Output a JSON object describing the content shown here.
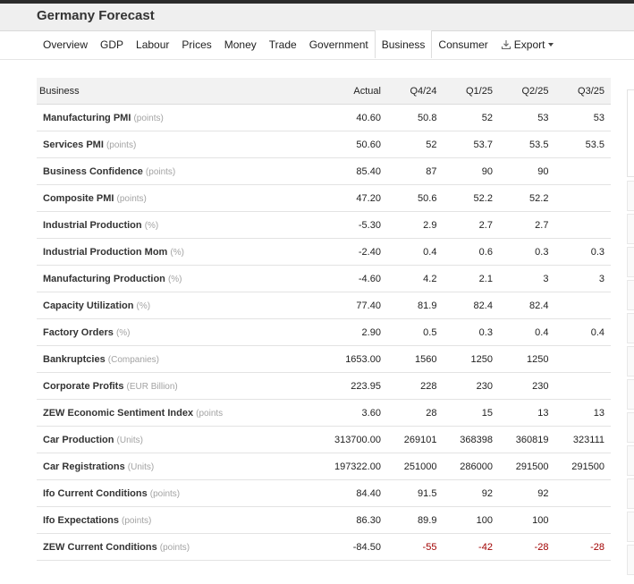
{
  "page_title": "Germany Forecast",
  "nav": [
    {
      "label": "Overview"
    },
    {
      "label": "GDP"
    },
    {
      "label": "Labour"
    },
    {
      "label": "Prices"
    },
    {
      "label": "Money"
    },
    {
      "label": "Trade"
    },
    {
      "label": "Government"
    },
    {
      "label": "Business",
      "active": true
    },
    {
      "label": "Consumer"
    },
    {
      "label": "Export",
      "icon": "download-icon",
      "dropdown": true
    }
  ],
  "table": {
    "columns": [
      "Business",
      "Actual",
      "Q4/24",
      "Q1/25",
      "Q2/25",
      "Q3/25"
    ],
    "rows": [
      {
        "name": "Manufacturing PMI",
        "unit": "(points)",
        "actual": "40.60",
        "q4_24": "50.8",
        "q1_25": "52",
        "q2_25": "53",
        "q3_25": "53"
      },
      {
        "name": "Services PMI",
        "unit": "(points)",
        "actual": "50.60",
        "q4_24": "52",
        "q1_25": "53.7",
        "q2_25": "53.5",
        "q3_25": "53.5"
      },
      {
        "name": "Business Confidence",
        "unit": "(points)",
        "actual": "85.40",
        "q4_24": "87",
        "q1_25": "90",
        "q2_25": "90",
        "q3_25": ""
      },
      {
        "name": "Composite PMI",
        "unit": "(points)",
        "actual": "47.20",
        "q4_24": "50.6",
        "q1_25": "52.2",
        "q2_25": "52.2",
        "q3_25": ""
      },
      {
        "name": "Industrial Production",
        "unit": "(%)",
        "actual": "-5.30",
        "q4_24": "2.9",
        "q1_25": "2.7",
        "q2_25": "2.7",
        "q3_25": ""
      },
      {
        "name": "Industrial Production Mom",
        "unit": "(%)",
        "actual": "-2.40",
        "q4_24": "0.4",
        "q1_25": "0.6",
        "q2_25": "0.3",
        "q3_25": "0.3"
      },
      {
        "name": "Manufacturing Production",
        "unit": "(%)",
        "actual": "-4.60",
        "q4_24": "4.2",
        "q1_25": "2.1",
        "q2_25": "3",
        "q3_25": "3"
      },
      {
        "name": "Capacity Utilization",
        "unit": "(%)",
        "actual": "77.40",
        "q4_24": "81.9",
        "q1_25": "82.4",
        "q2_25": "82.4",
        "q3_25": ""
      },
      {
        "name": "Factory Orders",
        "unit": "(%)",
        "actual": "2.90",
        "q4_24": "0.5",
        "q1_25": "0.3",
        "q2_25": "0.4",
        "q3_25": "0.4"
      },
      {
        "name": "Bankruptcies",
        "unit": "(Companies)",
        "actual": "1653.00",
        "q4_24": "1560",
        "q1_25": "1250",
        "q2_25": "1250",
        "q3_25": ""
      },
      {
        "name": "Corporate Profits",
        "unit": "(EUR Billion)",
        "actual": "223.95",
        "q4_24": "228",
        "q1_25": "230",
        "q2_25": "230",
        "q3_25": ""
      },
      {
        "name": "ZEW Economic Sentiment Index",
        "unit": "(points",
        "actual": "3.60",
        "q4_24": "28",
        "q1_25": "15",
        "q2_25": "13",
        "q3_25": "13"
      },
      {
        "name": "Car Production",
        "unit": "(Units)",
        "actual": "313700.00",
        "q4_24": "269101",
        "q1_25": "368398",
        "q2_25": "360819",
        "q3_25": "323111"
      },
      {
        "name": "Car Registrations",
        "unit": "(Units)",
        "actual": "197322.00",
        "q4_24": "251000",
        "q1_25": "286000",
        "q2_25": "291500",
        "q3_25": "291500"
      },
      {
        "name": "Ifo Current Conditions",
        "unit": "(points)",
        "actual": "84.40",
        "q4_24": "91.5",
        "q1_25": "92",
        "q2_25": "92",
        "q3_25": ""
      },
      {
        "name": "Ifo Expectations",
        "unit": "(points)",
        "actual": "86.30",
        "q4_24": "89.9",
        "q1_25": "100",
        "q2_25": "100",
        "q3_25": ""
      },
      {
        "name": "ZEW Current Conditions",
        "unit": "(points)",
        "actual": "-84.50",
        "q4_24": "-55",
        "q1_25": "-42",
        "q2_25": "-28",
        "q3_25": "-28"
      }
    ]
  },
  "colors": {
    "negative_forecast": "#a10000",
    "header_bg": "#f2f2f2",
    "title_bar_bg": "#efefef"
  }
}
